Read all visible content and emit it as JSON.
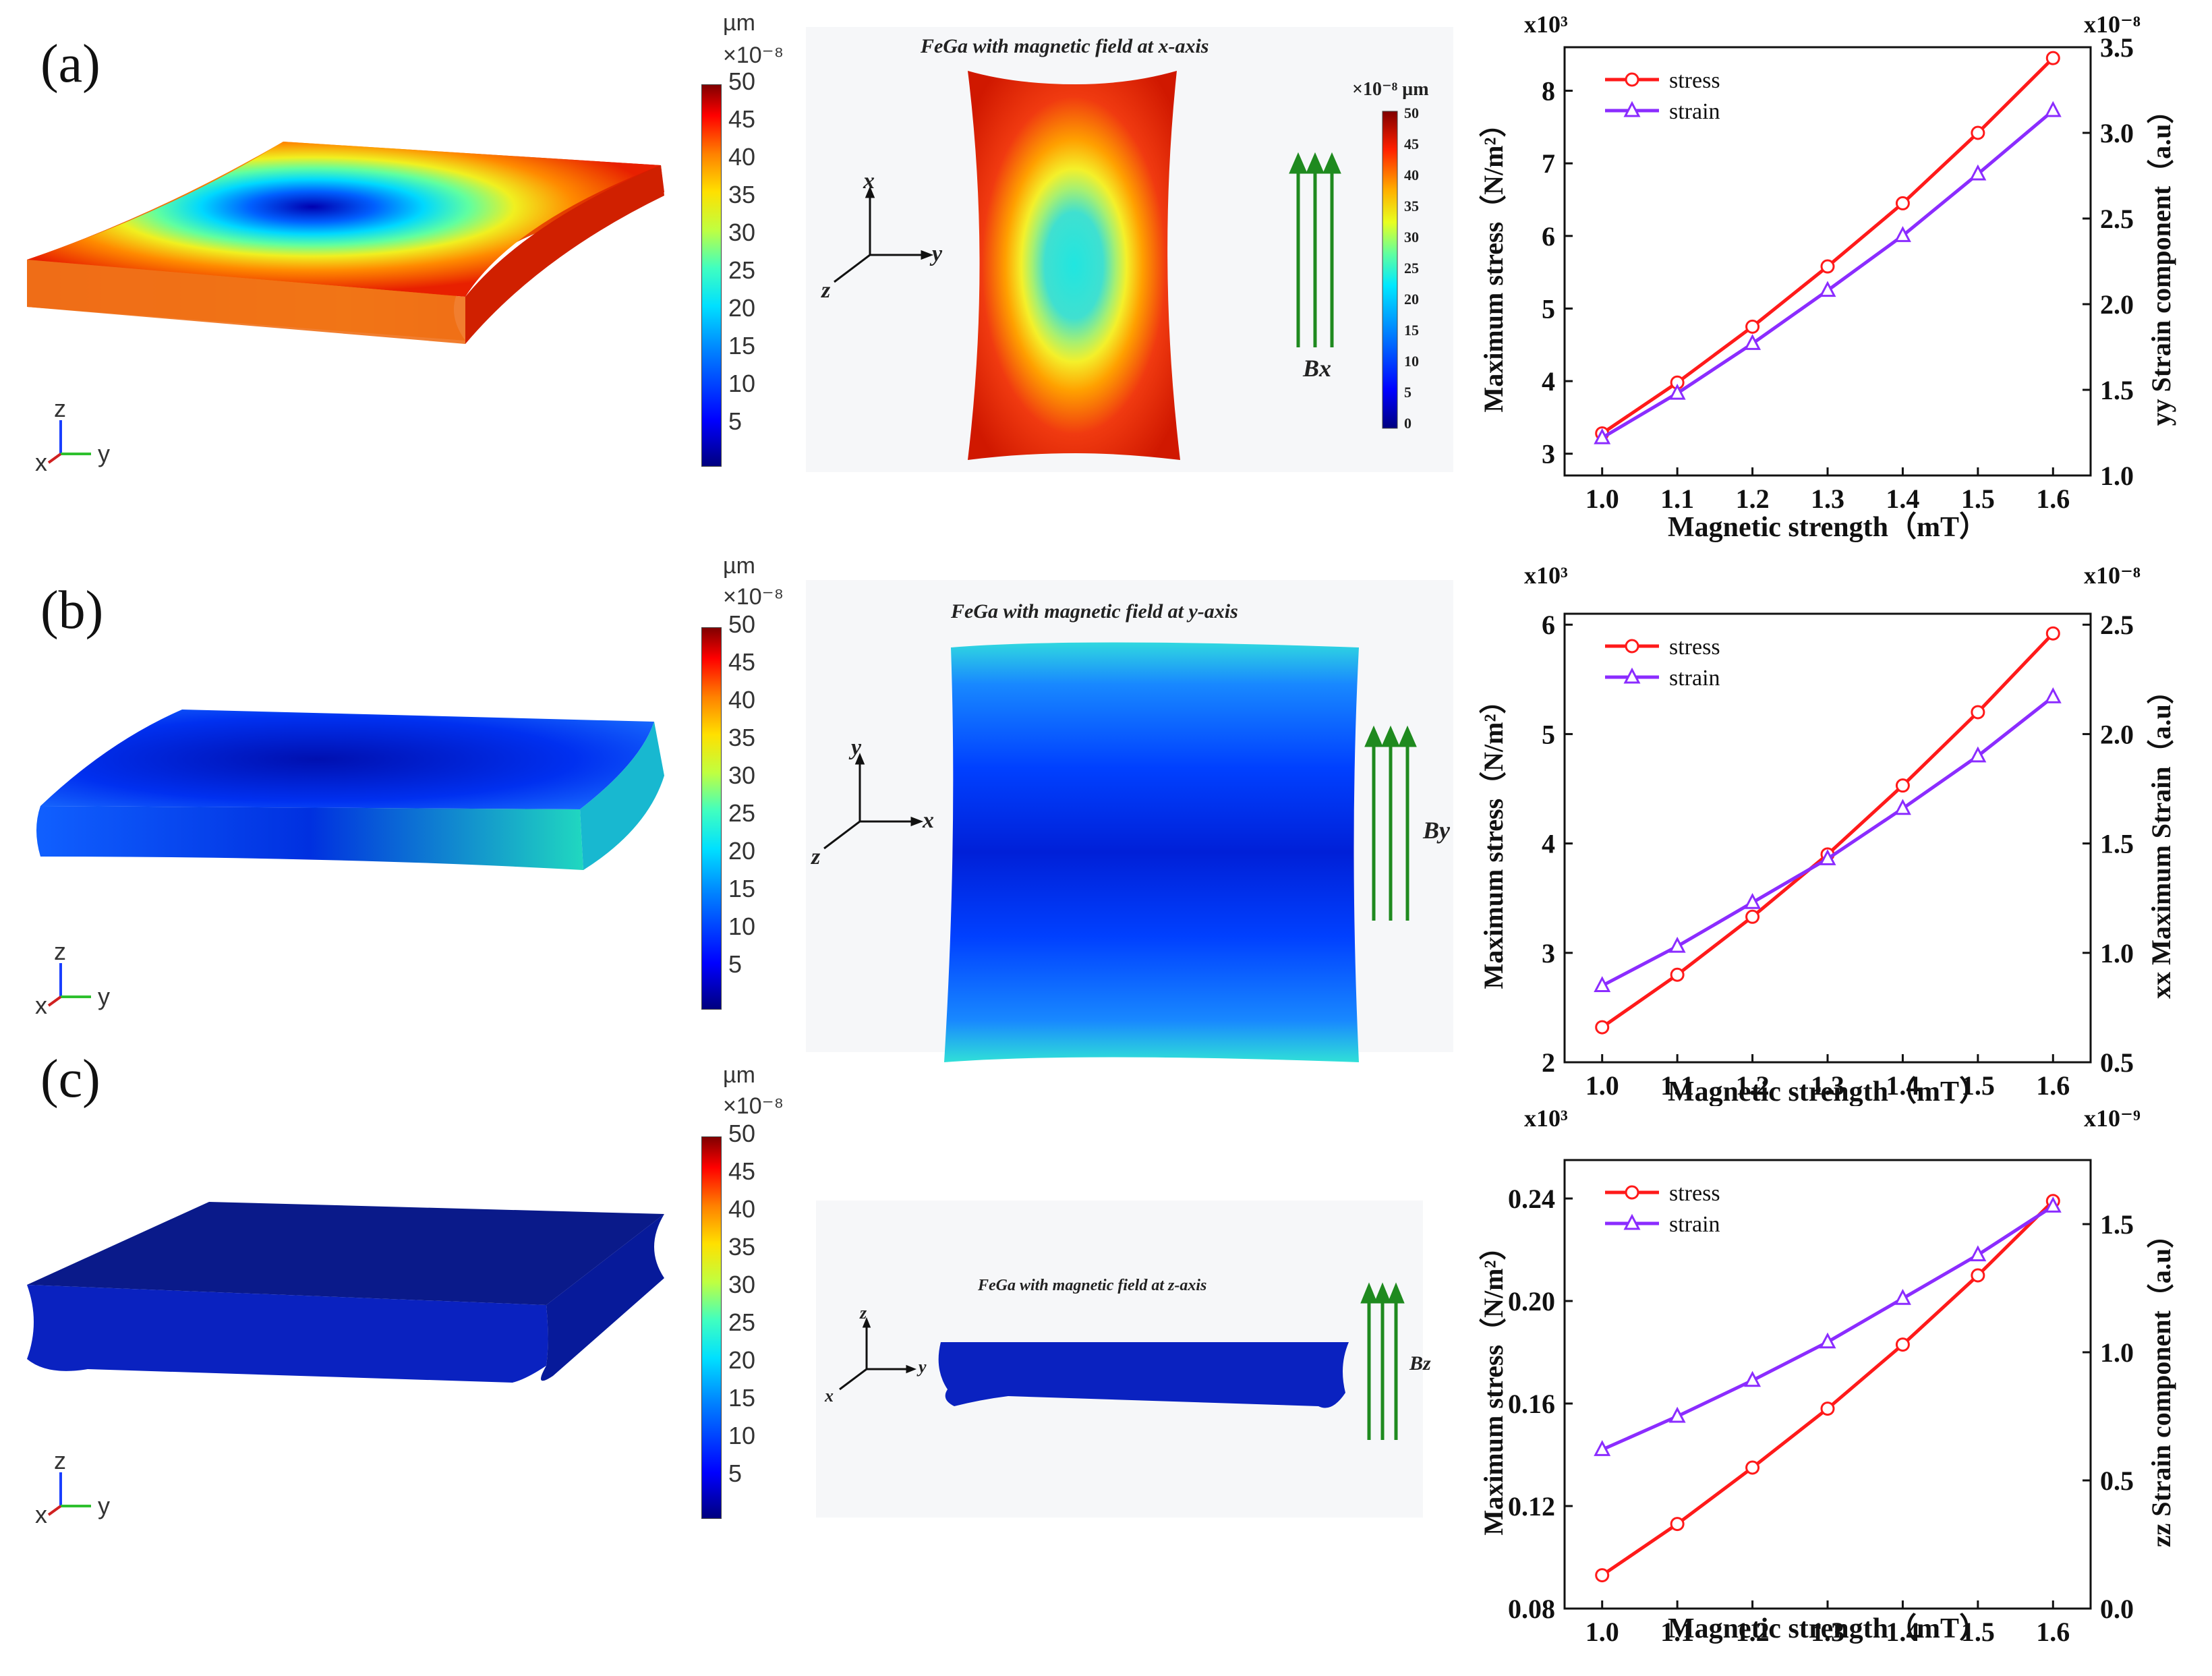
{
  "panels": [
    {
      "label": "(a)",
      "colorbar": {
        "unit": "µm",
        "scale": "×10⁻⁸",
        "ticks": [
          "50",
          "45",
          "40",
          "35",
          "30",
          "25",
          "20",
          "15",
          "10",
          "5"
        ]
      },
      "axes3d": {
        "up": "z",
        "right": "y",
        "out": "x"
      },
      "mid": {
        "title": "FeGa with magnetic field at x-axis",
        "axis_up": "x",
        "axis_right": "y",
        "axis_out": "z",
        "field": "Bx",
        "colorbar_unit": "×10⁻⁸ µm",
        "colorbar_ticks": [
          "50",
          "45",
          "40",
          "35",
          "30",
          "25",
          "20",
          "15",
          "10",
          "5",
          "0"
        ]
      }
    },
    {
      "label": "(b)",
      "colorbar": {
        "unit": "µm",
        "scale": "×10⁻⁸",
        "ticks": [
          "50",
          "45",
          "40",
          "35",
          "30",
          "25",
          "20",
          "15",
          "10",
          "5"
        ]
      },
      "axes3d": {
        "up": "z",
        "right": "y",
        "out": "x"
      },
      "mid": {
        "title": "FeGa with magnetic field at y-axis",
        "axis_up": "y",
        "axis_right": "x",
        "axis_out": "z",
        "field": "By"
      }
    },
    {
      "label": "(c)",
      "colorbar": {
        "unit": "µm",
        "scale": "×10⁻⁸",
        "ticks": [
          "50",
          "45",
          "40",
          "35",
          "30",
          "25",
          "20",
          "15",
          "10",
          "5"
        ]
      },
      "axes3d": {
        "up": "z",
        "right": "y",
        "out": "x"
      },
      "mid": {
        "title": "FeGa with magnetic field at z-axis",
        "axis_up": "z",
        "axis_right": "y",
        "axis_out": "x",
        "field": "Bz"
      }
    }
  ],
  "chart_data": [
    {
      "type": "line",
      "x": [
        1.0,
        1.1,
        1.2,
        1.3,
        1.4,
        1.5,
        1.6
      ],
      "x_ticks": [
        "1.0",
        "1.1",
        "1.2",
        "1.3",
        "1.4",
        "1.5",
        "1.6"
      ],
      "xlabel": "Magnetic strength（mT）",
      "ylabel_left": "Maximum stress（N/m²）",
      "ylabel_right": "yy Strain component（a.u）",
      "left_scale": "x10³",
      "right_scale": "x10⁻⁸",
      "ylim_left": [
        2.7,
        8.6
      ],
      "ylim_right": [
        1.0,
        3.5
      ],
      "yticks_left": [
        "3",
        "4",
        "5",
        "6",
        "7",
        "8"
      ],
      "yticks_left_values": [
        3,
        4,
        5,
        6,
        7,
        8
      ],
      "yticks_right": [
        "1.0",
        "1.5",
        "2.0",
        "2.5",
        "3.0",
        "3.5"
      ],
      "yticks_right_values": [
        1.0,
        1.5,
        2.0,
        2.5,
        3.0,
        3.5
      ],
      "series": [
        {
          "name": "stress",
          "axis": "left",
          "color": "#ff1a1a",
          "marker": "circle",
          "values": [
            3.28,
            3.98,
            4.75,
            5.58,
            6.45,
            7.42,
            8.45
          ]
        },
        {
          "name": "strain",
          "axis": "right",
          "color": "#8b2cff",
          "marker": "triangle",
          "values": [
            1.22,
            1.48,
            1.77,
            2.08,
            2.4,
            2.76,
            3.13
          ]
        }
      ]
    },
    {
      "type": "line",
      "x": [
        1.0,
        1.1,
        1.2,
        1.3,
        1.4,
        1.5,
        1.6
      ],
      "x_ticks": [
        "1.0",
        "1.1",
        "1.2",
        "1.3",
        "1.4",
        "1.5",
        "1.6"
      ],
      "xlabel": "Magnetic strength（mT）",
      "ylabel_left": "Maximum stress（N/m²）",
      "ylabel_right": "xx Maximum Strain（a.u）",
      "left_scale": "x10³",
      "right_scale": "x10⁻⁸",
      "ylim_left": [
        2.0,
        6.1
      ],
      "ylim_right": [
        0.5,
        2.55
      ],
      "yticks_left": [
        "2",
        "3",
        "4",
        "5",
        "6"
      ],
      "yticks_left_values": [
        2,
        3,
        4,
        5,
        6
      ],
      "yticks_right": [
        "0.5",
        "1.0",
        "1.5",
        "2.0",
        "2.5"
      ],
      "yticks_right_values": [
        0.5,
        1.0,
        1.5,
        2.0,
        2.5
      ],
      "series": [
        {
          "name": "stress",
          "axis": "left",
          "color": "#ff1a1a",
          "marker": "circle",
          "values": [
            2.32,
            2.8,
            3.33,
            3.9,
            4.53,
            5.2,
            5.92
          ]
        },
        {
          "name": "strain",
          "axis": "right",
          "color": "#8b2cff",
          "marker": "triangle",
          "values": [
            0.85,
            1.03,
            1.23,
            1.43,
            1.66,
            1.9,
            2.17
          ]
        }
      ]
    },
    {
      "type": "line",
      "x": [
        1.0,
        1.1,
        1.2,
        1.3,
        1.4,
        1.5,
        1.6
      ],
      "x_ticks": [
        "1.0",
        "1.1",
        "1.2",
        "1.3",
        "1.4",
        "1.5",
        "1.6"
      ],
      "xlabel": "Magnetic strength（mT）",
      "ylabel_left": "Maximum stress（N/m²）",
      "ylabel_right": "zz Strain component（a.u）",
      "left_scale": "x10³",
      "right_scale": "x10⁻⁹",
      "ylim_left": [
        0.08,
        0.255
      ],
      "ylim_right": [
        0.0,
        1.75
      ],
      "yticks_left": [
        "0.08",
        "0.12",
        "0.16",
        "0.20",
        "0.24"
      ],
      "yticks_left_values": [
        0.08,
        0.12,
        0.16,
        0.2,
        0.24
      ],
      "yticks_right": [
        "0.0",
        "0.5",
        "1.0",
        "1.5"
      ],
      "yticks_right_values": [
        0.0,
        0.5,
        1.0,
        1.5
      ],
      "series": [
        {
          "name": "stress",
          "axis": "left",
          "color": "#ff1a1a",
          "marker": "circle",
          "values": [
            0.093,
            0.113,
            0.135,
            0.158,
            0.183,
            0.21,
            0.239
          ]
        },
        {
          "name": "strain",
          "axis": "right",
          "color": "#8b2cff",
          "marker": "triangle",
          "values": [
            0.62,
            0.75,
            0.89,
            1.04,
            1.21,
            1.38,
            1.57
          ]
        }
      ]
    }
  ]
}
